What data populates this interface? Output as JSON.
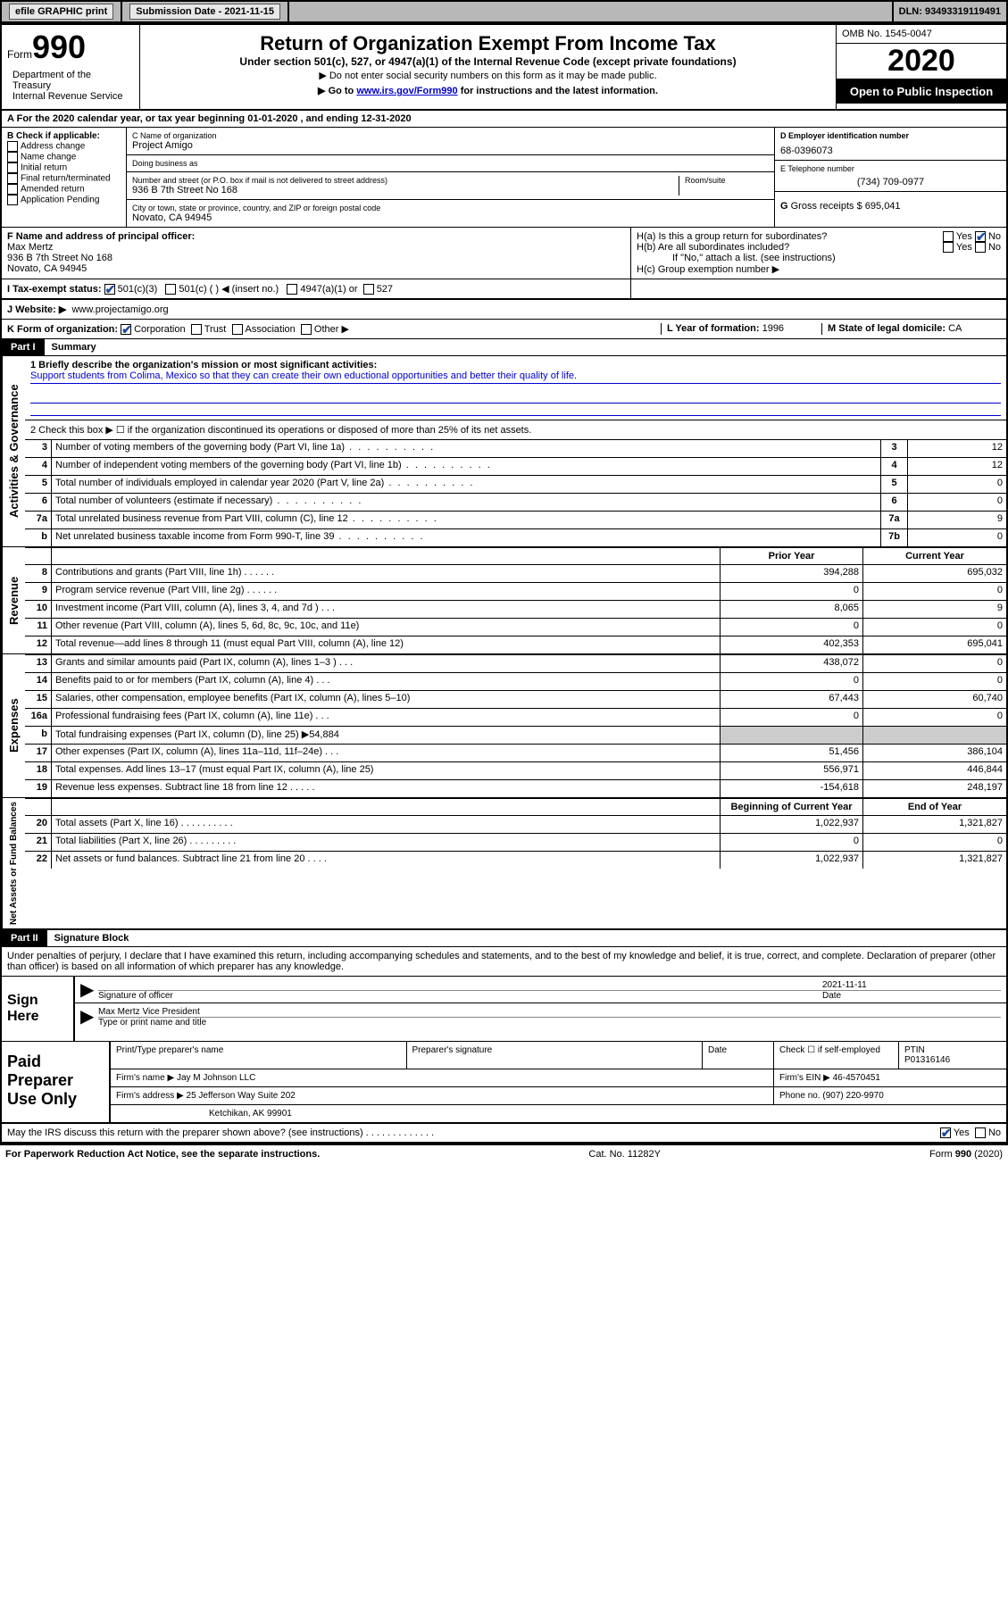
{
  "topbar": {
    "efile": "efile GRAPHIC print",
    "submission_label": "Submission Date - 2021-11-15",
    "dln": "DLN: 93493319119491"
  },
  "header": {
    "form_label": "Form",
    "form_number": "990",
    "dept": "Department of the Treasury\nInternal Revenue Service",
    "title": "Return of Organization Exempt From Income Tax",
    "subtitle": "Under section 501(c), 527, or 4947(a)(1) of the Internal Revenue Code (except private foundations)",
    "note1": "▶ Do not enter social security numbers on this form as it may be made public.",
    "note2_pre": "▶ Go to ",
    "note2_link": "www.irs.gov/Form990",
    "note2_post": " for instructions and the latest information.",
    "omb": "OMB No. 1545-0047",
    "year": "2020",
    "inspect": "Open to Public Inspection"
  },
  "row_a": "For the 2020 calendar year, or tax year beginning 01-01-2020    , and ending 12-31-2020",
  "box_b": {
    "label": "B Check if applicable:",
    "items": [
      "Address change",
      "Name change",
      "Initial return",
      "Final return/terminated",
      "Amended return",
      "Application Pending"
    ]
  },
  "box_c": {
    "name_label": "C Name of organization",
    "name": "Project Amigo",
    "dba_label": "Doing business as",
    "addr_label": "Number and street (or P.O. box if mail is not delivered to street address)",
    "room_label": "Room/suite",
    "addr": "936 B 7th Street No 168",
    "city_label": "City or town, state or province, country, and ZIP or foreign postal code",
    "city": "Novato, CA  94945"
  },
  "box_d": {
    "label": "D Employer identification number",
    "value": "68-0396073"
  },
  "box_e": {
    "label": "E Telephone number",
    "value": "(734) 709-0977"
  },
  "box_g": {
    "label_pre": "G",
    "label": "Gross receipts $",
    "value": "695,041"
  },
  "box_f": {
    "label": "F Name and address of principal officer:",
    "name": "Max Mertz",
    "addr1": "936 B 7th Street No 168",
    "addr2": "Novato, CA  94945"
  },
  "box_h": {
    "ha": "H(a)  Is this a group return for subordinates?",
    "hb": "H(b)  Are all subordinates included?",
    "hb_note": "If \"No,\" attach a list. (see instructions)",
    "hc": "H(c)  Group exemption number ▶",
    "yes": "Yes",
    "no": "No"
  },
  "row_i": {
    "label": "I   Tax-exempt status:",
    "opts": [
      "501(c)(3)",
      "501(c) (  ) ◀ (insert no.)",
      "4947(a)(1) or",
      "527"
    ]
  },
  "row_j": {
    "label": "J   Website: ▶",
    "value": "www.projectamigo.org"
  },
  "row_k": {
    "label": "K Form of organization:",
    "opts": [
      "Corporation",
      "Trust",
      "Association",
      "Other ▶"
    ]
  },
  "row_l": {
    "label": "L Year of formation:",
    "value": "1996"
  },
  "row_m": {
    "label": "M State of legal domicile:",
    "value": "CA"
  },
  "part1": {
    "hdr": "Part I",
    "title": "Summary"
  },
  "summary": {
    "q1_label": "1  Briefly describe the organization's mission or most significant activities:",
    "q1_text": "Support students from Colima, Mexico so that they can create their own eductional opportunities and better their quality of life.",
    "q2": "2   Check this box ▶ ☐  if the organization discontinued its operations or disposed of more than 25% of its net assets."
  },
  "gov_lines": [
    {
      "n": "3",
      "txt": "Number of voting members of the governing body (Part VI, line 1a)",
      "lbl": "3",
      "val": "12"
    },
    {
      "n": "4",
      "txt": "Number of independent voting members of the governing body (Part VI, line 1b)",
      "lbl": "4",
      "val": "12"
    },
    {
      "n": "5",
      "txt": "Total number of individuals employed in calendar year 2020 (Part V, line 2a)",
      "lbl": "5",
      "val": "0"
    },
    {
      "n": "6",
      "txt": "Total number of volunteers (estimate if necessary)",
      "lbl": "6",
      "val": "0"
    },
    {
      "n": "7a",
      "txt": "Total unrelated business revenue from Part VIII, column (C), line 12",
      "lbl": "7a",
      "val": "9"
    },
    {
      "n": "b",
      "txt": "Net unrelated business taxable income from Form 990-T, line 39",
      "lbl": "7b",
      "val": "0"
    }
  ],
  "col_hdr_prior": "Prior Year",
  "col_hdr_current": "Current Year",
  "rev_lines": [
    {
      "n": "8",
      "txt": "Contributions and grants (Part VIII, line 1h)  .   .   .   .   .   .",
      "p": "394,288",
      "c": "695,032"
    },
    {
      "n": "9",
      "txt": "Program service revenue (Part VIII, line 2g)  .   .   .   .   .   .",
      "p": "0",
      "c": "0"
    },
    {
      "n": "10",
      "txt": "Investment income (Part VIII, column (A), lines 3, 4, and 7d )  .   .   .",
      "p": "8,065",
      "c": "9"
    },
    {
      "n": "11",
      "txt": "Other revenue (Part VIII, column (A), lines 5, 6d, 8c, 9c, 10c, and 11e)",
      "p": "0",
      "c": "0"
    },
    {
      "n": "12",
      "txt": "Total revenue—add lines 8 through 11 (must equal Part VIII, column (A), line 12)",
      "p": "402,353",
      "c": "695,041"
    }
  ],
  "exp_lines": [
    {
      "n": "13",
      "txt": "Grants and similar amounts paid (Part IX, column (A), lines 1–3 )  .   .   .",
      "p": "438,072",
      "c": "0"
    },
    {
      "n": "14",
      "txt": "Benefits paid to or for members (Part IX, column (A), line 4)  .   .   .",
      "p": "0",
      "c": "0"
    },
    {
      "n": "15",
      "txt": "Salaries, other compensation, employee benefits (Part IX, column (A), lines 5–10)",
      "p": "67,443",
      "c": "60,740"
    },
    {
      "n": "16a",
      "txt": "Professional fundraising fees (Part IX, column (A), line 11e)  .   .   .",
      "p": "0",
      "c": "0"
    },
    {
      "n": "b",
      "txt": "Total fundraising expenses (Part IX, column (D), line 25) ▶54,884",
      "p": "GRAY",
      "c": "GRAY"
    },
    {
      "n": "17",
      "txt": "Other expenses (Part IX, column (A), lines 11a–11d, 11f–24e)  .   .   .",
      "p": "51,456",
      "c": "386,104"
    },
    {
      "n": "18",
      "txt": "Total expenses. Add lines 13–17 (must equal Part IX, column (A), line 25)",
      "p": "556,971",
      "c": "446,844"
    },
    {
      "n": "19",
      "txt": "Revenue less expenses. Subtract line 18 from line 12  .   .   .   .   .",
      "p": "-154,618",
      "c": "248,197"
    }
  ],
  "col_hdr_boy": "Beginning of Current Year",
  "col_hdr_eoy": "End of Year",
  "net_lines": [
    {
      "n": "20",
      "txt": "Total assets (Part X, line 16)  .   .   .   .   .   .   .   .   .   .",
      "p": "1,022,937",
      "c": "1,321,827"
    },
    {
      "n": "21",
      "txt": "Total liabilities (Part X, line 26)  .   .   .   .   .   .   .   .   .",
      "p": "0",
      "c": "0"
    },
    {
      "n": "22",
      "txt": "Net assets or fund balances. Subtract line 21 from line 20  .   .   .   .",
      "p": "1,022,937",
      "c": "1,321,827"
    }
  ],
  "vlabels": {
    "gov": "Activities & Governance",
    "rev": "Revenue",
    "exp": "Expenses",
    "net": "Net Assets or Fund Balances"
  },
  "part2": {
    "hdr": "Part II",
    "title": "Signature Block"
  },
  "penalty": "Under penalties of perjury, I declare that I have examined this return, including accompanying schedules and statements, and to the best of my knowledge and belief, it is true, correct, and complete. Declaration of preparer (other than officer) is based on all information of which preparer has any knowledge.",
  "sign": {
    "here": "Sign Here",
    "sig_label": "Signature of officer",
    "date_label": "Date",
    "date_val": "2021-11-11",
    "name": "Max Mertz  Vice President",
    "name_label": "Type or print name and title"
  },
  "prep": {
    "title": "Paid Preparer Use Only",
    "r1": {
      "c1": "Print/Type preparer's name",
      "c2": "Preparer's signature",
      "c3": "Date",
      "c4_pre": "Check ☐ if self-employed",
      "c5_label": "PTIN",
      "c5_val": "P01316146"
    },
    "r2": {
      "label": "Firm's name    ▶",
      "val": "Jay M Johnson LLC",
      "ein_label": "Firm's EIN ▶",
      "ein": "46-4570451"
    },
    "r3": {
      "label": "Firm's address ▶",
      "val": "25 Jefferson Way Suite 202",
      "phone_label": "Phone no.",
      "phone": "(907) 220-9970"
    },
    "r4": {
      "city": "Ketchikan, AK  99901"
    }
  },
  "discuss": {
    "q": "May the IRS discuss this return with the preparer shown above? (see instructions)   .   .   .   .   .   .   .   .   .   .   .   .   .",
    "yes": "Yes",
    "no": "No"
  },
  "footer": {
    "left": "For Paperwork Reduction Act Notice, see the separate instructions.",
    "mid": "Cat. No. 11282Y",
    "right": "Form 990 (2020)"
  }
}
